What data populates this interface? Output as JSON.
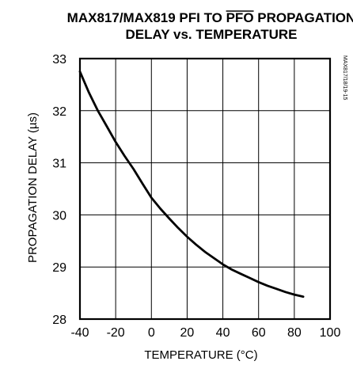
{
  "chart_data": {
    "type": "line",
    "title_parts": [
      "MAX817/MAX819 PFI TO ",
      "PFO",
      " PROPAGATION"
    ],
    "title_line2": "DELAY vs. TEMPERATURE",
    "xlabel": "TEMPERATURE (°C)",
    "ylabel": "PROPAGATION DELAY (µs)",
    "part_number": "MAX817/18/19-15",
    "xlim": [
      -40,
      100
    ],
    "ylim": [
      28,
      33
    ],
    "x_ticks": [
      -40,
      -20,
      0,
      20,
      40,
      60,
      80,
      100
    ],
    "y_ticks": [
      28,
      29,
      30,
      31,
      32,
      33
    ],
    "x_tick_labels": [
      "-40",
      "-20",
      "0",
      "20",
      "40",
      "60",
      "80",
      "100"
    ],
    "y_tick_labels": [
      "28",
      "29",
      "30",
      "31",
      "32",
      "33"
    ],
    "grid": true,
    "series": [
      {
        "x": [
          -40,
          -35,
          -30,
          -25,
          -20,
          -15,
          -10,
          -5,
          0,
          5,
          10,
          15,
          20,
          25,
          30,
          35,
          40,
          45,
          50,
          55,
          60,
          65,
          70,
          75,
          80,
          85
        ],
        "y": [
          32.75,
          32.35,
          32.0,
          31.7,
          31.4,
          31.13,
          30.88,
          30.6,
          30.33,
          30.12,
          29.93,
          29.75,
          29.58,
          29.43,
          29.29,
          29.17,
          29.05,
          28.95,
          28.87,
          28.79,
          28.71,
          28.64,
          28.58,
          28.52,
          28.47,
          28.43
        ]
      }
    ]
  }
}
